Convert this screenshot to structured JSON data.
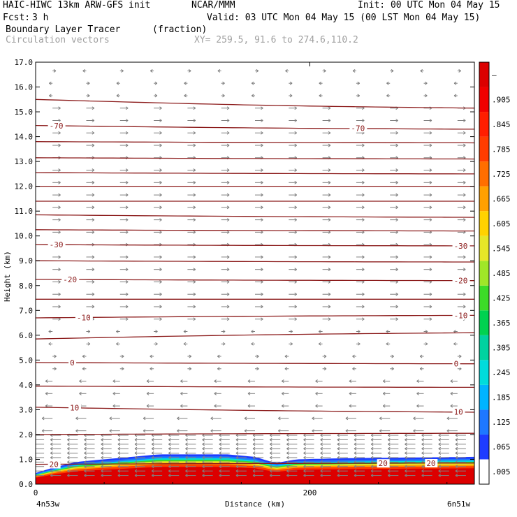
{
  "header": {
    "model": "HAIC-HIWC 13km ARW-GFS init",
    "org": "NCAR/MMM",
    "init": "Init: 00 UTC Mon 04 May 15",
    "fcst_label": "Fcst:",
    "fcst_value": "3 h",
    "valid": "Valid: 03 UTC Mon 04 May 15 (00 LST Mon 04 May 15)",
    "field": "Boundary Layer Tracer",
    "units": "(fraction)",
    "overlay": "Circulation vectors",
    "xy": "XY= 259.5, 91.6 to 274.6,110.2"
  },
  "colors": {
    "contour": "#8b1a1a",
    "vector": "#808080",
    "frame": "#000000"
  },
  "chart_data": {
    "type": "heatmap",
    "title": "Boundary Layer Tracer",
    "xlabel": "Distance (km)",
    "ylabel": "Height (km)",
    "xlim": [
      0,
      320
    ],
    "ylim": [
      0,
      17
    ],
    "x_ticks": [
      {
        "value": 0,
        "label": "0"
      },
      {
        "value": 200,
        "label": "200"
      }
    ],
    "x_end_labels": [
      "4n53w",
      "6n51w"
    ],
    "y_ticks": [
      "0.0",
      "1.0",
      "2.0",
      "3.0",
      "4.0",
      "5.0",
      "6.0",
      "7.0",
      "8.0",
      "9.0",
      "10.0",
      "11.0",
      "12.0",
      "13.0",
      "14.0",
      "15.0",
      "16.0",
      "17.0"
    ],
    "colorbar": {
      "labels": [
        ".005",
        ".065",
        ".125",
        ".185",
        ".245",
        ".305",
        ".365",
        ".425",
        ".485",
        ".545",
        ".605",
        ".665",
        ".725",
        ".785",
        ".845",
        ".905",
        "–"
      ],
      "colors": [
        "#ffffff",
        "#1e3cff",
        "#1e78ff",
        "#00b4ff",
        "#00dcdc",
        "#00d2a0",
        "#00d250",
        "#3cdc28",
        "#a0e628",
        "#e6e628",
        "#ffd200",
        "#ffa000",
        "#ff6e00",
        "#ff3c00",
        "#ff1e00",
        "#f00000",
        "#dc0000"
      ]
    },
    "tracer_top_km": [
      {
        "x": 0,
        "z": 0.45
      },
      {
        "x": 15,
        "z": 0.7
      },
      {
        "x": 30,
        "z": 0.9
      },
      {
        "x": 50,
        "z": 1.0
      },
      {
        "x": 70,
        "z": 1.1
      },
      {
        "x": 90,
        "z": 1.2
      },
      {
        "x": 140,
        "z": 1.2
      },
      {
        "x": 160,
        "z": 1.1
      },
      {
        "x": 175,
        "z": 0.85
      },
      {
        "x": 190,
        "z": 1.0
      },
      {
        "x": 230,
        "z": 1.05
      },
      {
        "x": 320,
        "z": 1.1
      }
    ],
    "temperature_contours": [
      {
        "value": -70,
        "label": "-70",
        "z_start": 14.45,
        "z_end": 14.3,
        "label_x": [
          10,
          230
        ]
      },
      {
        "value": -30,
        "label": "-30",
        "z_start": 9.65,
        "z_end": 9.6,
        "label_x": [
          10,
          305
        ]
      },
      {
        "value": -20,
        "label": "-20",
        "z_start": 8.25,
        "z_end": 8.2,
        "label_x": [
          20,
          305
        ]
      },
      {
        "value": -10,
        "label": "-10",
        "z_start": 6.7,
        "z_end": 6.8,
        "label_x": [
          30,
          305
        ]
      },
      {
        "value": 0,
        "label": "0",
        "z_start": 4.9,
        "z_end": 4.85,
        "label_x": [
          25,
          305
        ]
      },
      {
        "value": 10,
        "label": "10",
        "z_start": 3.1,
        "z_end": 2.9,
        "label_x": [
          25,
          305
        ]
      },
      {
        "value": 20,
        "label": "20",
        "z_start": 0.8,
        "z_end": 0.85,
        "label_x": [
          10,
          250,
          285
        ]
      }
    ],
    "other_contours_z": [
      {
        "z_start": 15.5,
        "z_end": 15.15
      },
      {
        "z_start": 13.8,
        "z_end": 13.75
      },
      {
        "z_start": 13.15,
        "z_end": 13.1
      },
      {
        "z_start": 12.55,
        "z_end": 12.5
      },
      {
        "z_start": 12.0,
        "z_end": 12.0
      },
      {
        "z_start": 11.4,
        "z_end": 11.4
      },
      {
        "z_start": 10.85,
        "z_end": 10.75
      },
      {
        "z_start": 10.25,
        "z_end": 10.2
      },
      {
        "z_start": 9.0,
        "z_end": 8.95
      },
      {
        "z_start": 7.45,
        "z_end": 7.45
      },
      {
        "z_start": 5.85,
        "z_end": 6.1
      },
      {
        "z_start": 3.95,
        "z_end": 3.9
      },
      {
        "z_start": 2.0,
        "z_end": 2.05
      }
    ],
    "wind_vectors": [
      {
        "z_min": 0,
        "z_max": 4.5,
        "direction": "left",
        "strength": 1.0
      },
      {
        "z_min": 4.5,
        "z_max": 6.5,
        "direction": "mixed",
        "strength": 0.2
      },
      {
        "z_min": 6.5,
        "z_max": 15.5,
        "direction": "right",
        "strength": 0.7
      },
      {
        "z_min": 15.5,
        "z_max": 17,
        "direction": "mixed",
        "strength": 0.15
      }
    ]
  }
}
